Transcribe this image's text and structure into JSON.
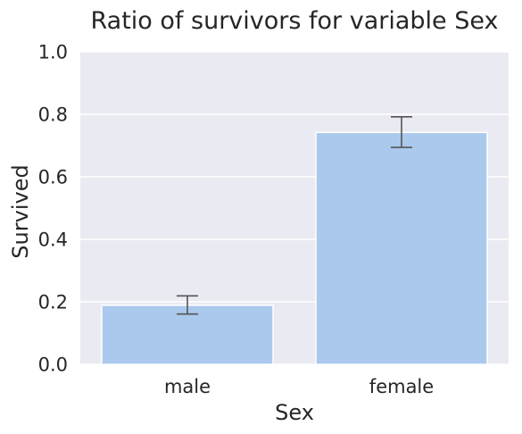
{
  "chart_data": {
    "type": "bar",
    "title": "Ratio of survivors for variable Sex",
    "xlabel": "Sex",
    "ylabel": "Survived",
    "categories": [
      "male",
      "female"
    ],
    "values": [
      0.189,
      0.742
    ],
    "error_bars": [
      [
        0.161,
        0.219
      ],
      [
        0.694,
        0.792
      ]
    ],
    "ylim": [
      0,
      1.0
    ],
    "yticks": [
      "0.0",
      "0.2",
      "0.4",
      "0.6",
      "0.8",
      "1.0"
    ],
    "grid": true,
    "colors": {
      "bar": "#abc9ed",
      "background": "#eaeaf2",
      "grid": "#ffffff",
      "error_bar": "#555555"
    }
  }
}
